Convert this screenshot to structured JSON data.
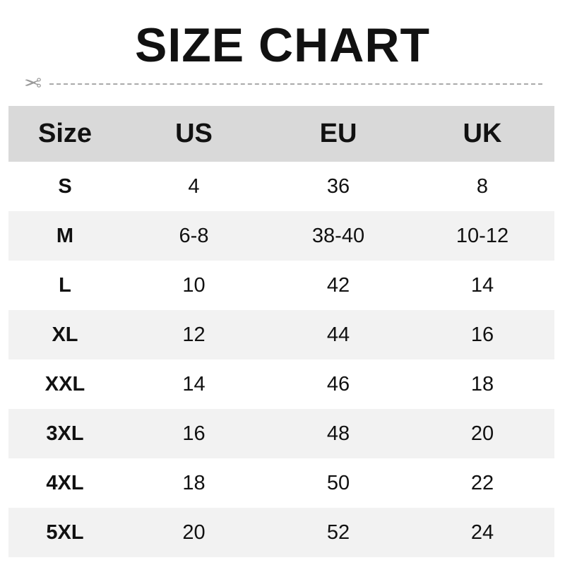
{
  "title": "SIZE CHART",
  "icons": {
    "cut": "scissors-icon"
  },
  "table": {
    "headers": [
      "Size",
      "US",
      "EU",
      "UK"
    ],
    "rows": [
      [
        "S",
        "4",
        "36",
        "8"
      ],
      [
        "M",
        "6-8",
        "38-40",
        "10-12"
      ],
      [
        "L",
        "10",
        "42",
        "14"
      ],
      [
        "XL",
        "12",
        "44",
        "16"
      ],
      [
        "XXL",
        "14",
        "46",
        "18"
      ],
      [
        "3XL",
        "16",
        "48",
        "20"
      ],
      [
        "4XL",
        "18",
        "50",
        "22"
      ],
      [
        "5XL",
        "20",
        "52",
        "24"
      ]
    ]
  },
  "colors": {
    "header_bg": "#d9d9d9",
    "alt_row_bg": "#f2f2f2"
  }
}
